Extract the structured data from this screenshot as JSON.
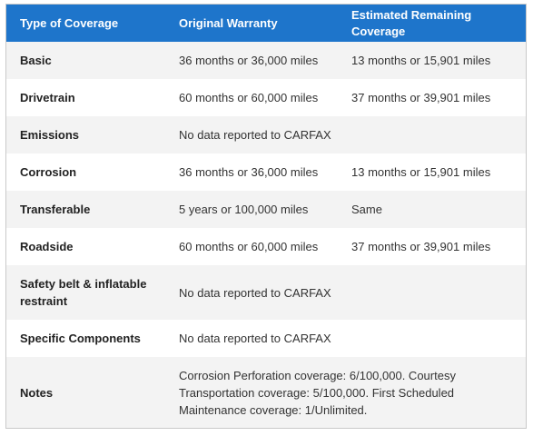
{
  "table": {
    "headers": [
      "Type of Coverage",
      "Original Warranty",
      "Estimated Remaining Coverage"
    ],
    "rows": [
      {
        "type": "Basic",
        "original": "36 months or 36,000 miles",
        "remaining": "13 months or 15,901 miles"
      },
      {
        "type": "Drivetrain",
        "original": "60 months or 60,000 miles",
        "remaining": "37 months or 39,901 miles"
      },
      {
        "type": "Emissions",
        "original": "No data reported to CARFAX",
        "remaining": ""
      },
      {
        "type": "Corrosion",
        "original": "36 months or 36,000 miles",
        "remaining": "13 months or 15,901 miles"
      },
      {
        "type": "Transferable",
        "original": "5 years or 100,000 miles",
        "remaining": "Same"
      },
      {
        "type": "Roadside",
        "original": "60 months or 60,000 miles",
        "remaining": "37 months or 39,901 miles"
      },
      {
        "type": "Safety belt & inflatable restraint",
        "original": "No data reported to CARFAX",
        "remaining": ""
      },
      {
        "type": "Specific Components",
        "original": "No data reported to CARFAX",
        "remaining": ""
      },
      {
        "type": "Notes",
        "original": "Corrosion Perforation coverage: 6/100,000. Courtesy Transportation coverage: 5/100,000. First Scheduled Maintenance coverage: 1/Unlimited.",
        "remaining": ""
      }
    ]
  },
  "colors": {
    "header_bg": "#1e75cb",
    "header_text": "#ffffff",
    "row_alt_bg": "#f3f3f3",
    "border": "#c9c9c9"
  }
}
